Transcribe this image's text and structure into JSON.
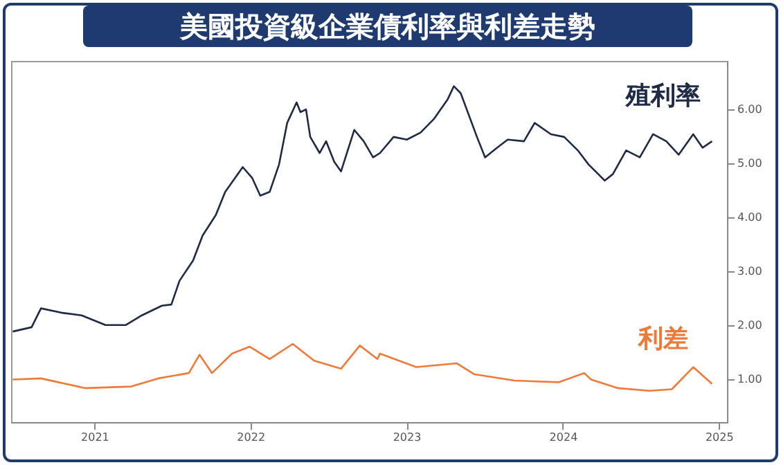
{
  "chart_data": {
    "type": "line",
    "title": "美國投資級企業債利率與利差走勢",
    "xlim": [
      "2020-12-18",
      "2025-07-20"
    ],
    "xticks": [
      {
        "value": "2021-07-01",
        "label": "2021"
      },
      {
        "value": "2022-07-01",
        "label": "2022"
      },
      {
        "value": "2023-07-01",
        "label": "2023"
      },
      {
        "value": "2024-07-01",
        "label": "2024"
      },
      {
        "value": "2025-07-01",
        "label": "2025"
      }
    ],
    "ylim": [
      0.2,
      6.9
    ],
    "yticks": [
      {
        "value": 1,
        "label": "1.00"
      },
      {
        "value": 2,
        "label": "2.00"
      },
      {
        "value": 3,
        "label": "3.00"
      },
      {
        "value": 4,
        "label": "4.00"
      },
      {
        "value": 5,
        "label": "5.00"
      },
      {
        "value": 6,
        "label": "6.00"
      }
    ],
    "grid": false,
    "legend": false,
    "series": [
      {
        "name": "殖利率",
        "color": "#1f2a44",
        "x": [
          "2020-12-22",
          "2021-02-04",
          "2021-02-26",
          "2021-04-14",
          "2021-06-01",
          "2021-07-27",
          "2021-09-12",
          "2021-10-20",
          "2021-12-06",
          "2021-12-28",
          "2022-01-16",
          "2022-02-17",
          "2022-03-11",
          "2022-04-11",
          "2022-05-03",
          "2022-06-13",
          "2022-07-05",
          "2022-07-24",
          "2022-08-15",
          "2022-09-06",
          "2022-09-25",
          "2022-10-17",
          "2022-10-26",
          "2022-11-08",
          "2022-11-18",
          "2022-12-10",
          "2022-12-25",
          "2023-01-13",
          "2023-01-29",
          "2023-03-01",
          "2023-03-23",
          "2023-04-14",
          "2023-04-30",
          "2023-06-01",
          "2023-07-02",
          "2023-08-03",
          "2023-09-03",
          "2023-10-05",
          "2023-10-20",
          "2023-11-05",
          "2023-12-13",
          "2024-01-01",
          "2024-01-29",
          "2024-02-23",
          "2024-04-01",
          "2024-04-26",
          "2024-06-03",
          "2024-07-04",
          "2024-08-05",
          "2024-08-30",
          "2024-10-07",
          "2024-10-26",
          "2024-11-26",
          "2024-12-28",
          "2025-01-28",
          "2025-02-28",
          "2025-03-29",
          "2025-05-02",
          "2025-05-24",
          "2025-06-15"
        ],
        "values": [
          1.88,
          1.96,
          2.31,
          2.23,
          2.18,
          2.0,
          2.0,
          2.18,
          2.36,
          2.38,
          2.82,
          3.2,
          3.66,
          4.04,
          4.47,
          4.93,
          4.73,
          4.4,
          4.47,
          4.98,
          5.75,
          6.13,
          5.95,
          6.0,
          5.49,
          5.19,
          5.41,
          5.03,
          4.85,
          5.62,
          5.41,
          5.11,
          5.19,
          5.49,
          5.44,
          5.57,
          5.82,
          6.18,
          6.43,
          6.3,
          5.49,
          5.11,
          5.29,
          5.44,
          5.41,
          5.75,
          5.54,
          5.49,
          5.24,
          4.98,
          4.68,
          4.8,
          5.24,
          5.11,
          5.54,
          5.41,
          5.16,
          5.54,
          5.29,
          5.41
        ]
      },
      {
        "name": "利差",
        "color": "#ee7a3a",
        "x": [
          "2020-12-22",
          "2021-02-26",
          "2021-06-10",
          "2021-09-25",
          "2021-11-27",
          "2022-02-07",
          "2022-03-04",
          "2022-04-02",
          "2022-05-19",
          "2022-06-29",
          "2022-08-15",
          "2022-10-08",
          "2022-11-27",
          "2023-01-29",
          "2023-03-14",
          "2023-04-24",
          "2023-04-30",
          "2023-07-24",
          "2023-10-27",
          "2023-12-06",
          "2024-03-10",
          "2024-06-22",
          "2024-08-20",
          "2024-09-05",
          "2024-11-07",
          "2025-01-19",
          "2025-03-13",
          "2025-05-02",
          "2025-06-15"
        ],
        "values": [
          0.99,
          1.01,
          0.83,
          0.86,
          1.01,
          1.11,
          1.45,
          1.11,
          1.47,
          1.6,
          1.37,
          1.65,
          1.34,
          1.19,
          1.62,
          1.37,
          1.47,
          1.22,
          1.29,
          1.09,
          0.97,
          0.94,
          1.11,
          0.99,
          0.83,
          0.78,
          0.81,
          1.22,
          0.91
        ]
      }
    ]
  }
}
